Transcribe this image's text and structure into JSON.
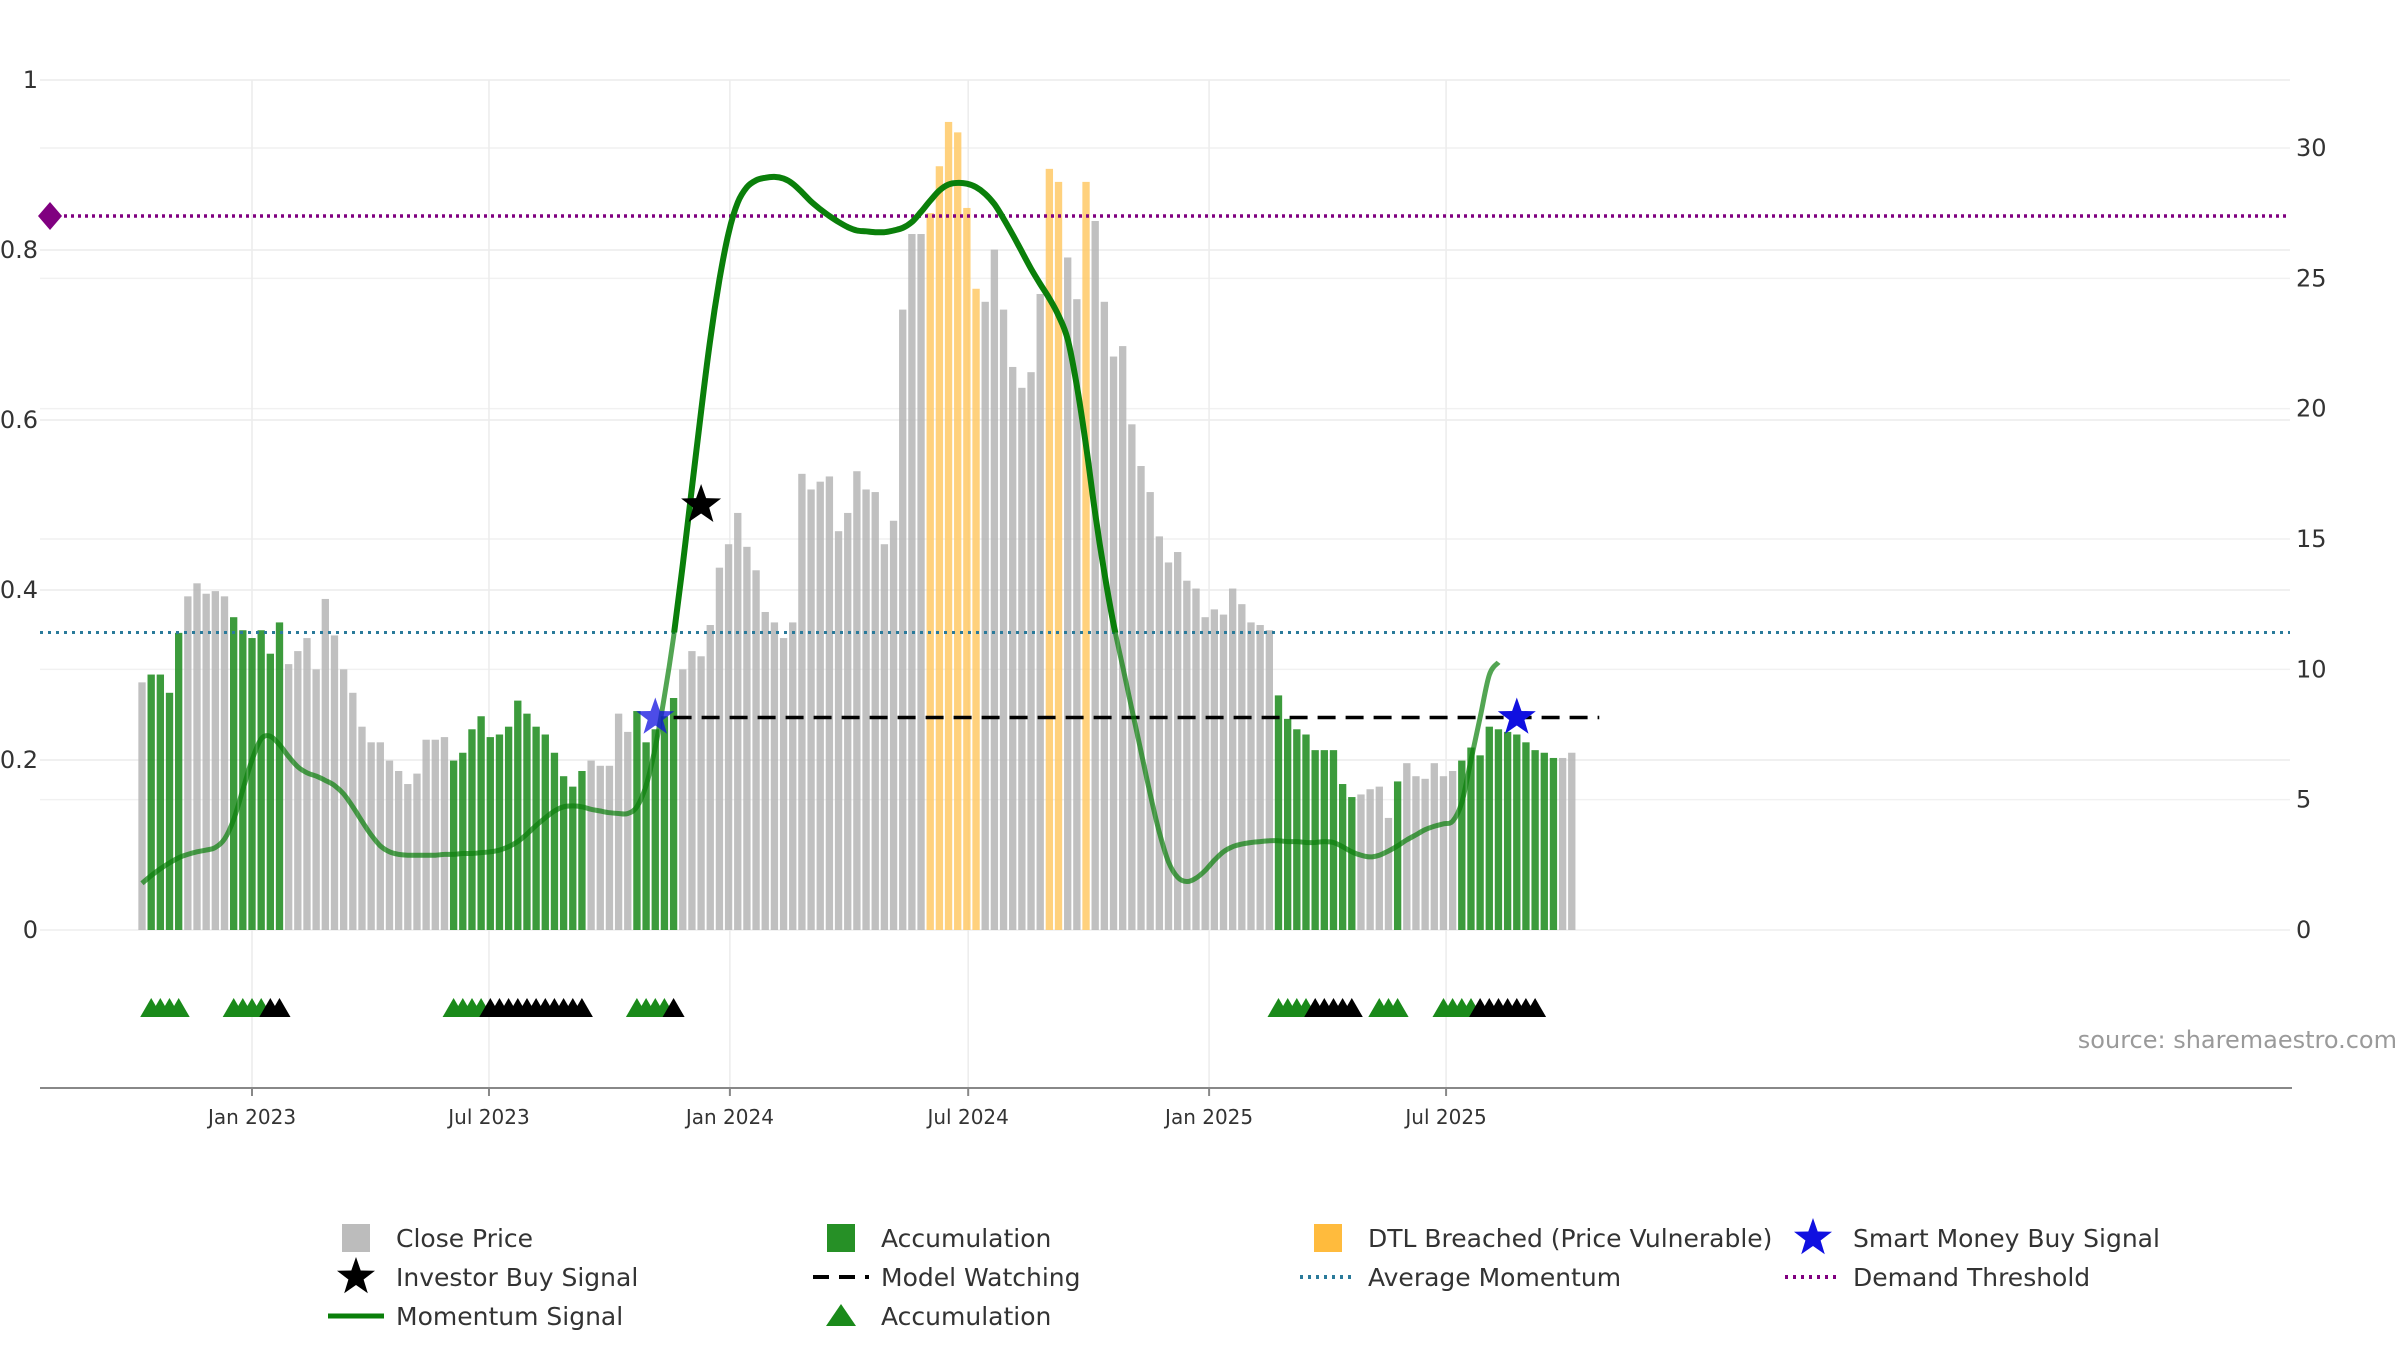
{
  "chart_data": {
    "type": "bar",
    "title": "",
    "source": "source: sharemaestro.com",
    "x_ticks": [
      "Jan 2023",
      "Jul 2023",
      "Jan 2024",
      "Jul 2024",
      "Jan 2025",
      "Jul 2025"
    ],
    "y_left_ticks": [
      "0",
      "0.2",
      "0.4",
      "0.6",
      "0.8",
      "1"
    ],
    "y_left_range": [
      0,
      1
    ],
    "y_right_ticks": [
      "0",
      "5",
      "10",
      "15",
      "20",
      "25",
      "30"
    ],
    "y_right_range": [
      0,
      30
    ],
    "grid": true,
    "legend_position": "bottom",
    "legend": [
      {
        "label": "Close Price",
        "symbol": "gray-square",
        "color": "#b5b5b5"
      },
      {
        "label": "Accumulation",
        "symbol": "green-square",
        "color": "#1a8a1a"
      },
      {
        "label": "DTL Breached (Price Vulnerable)",
        "symbol": "orange-square",
        "color": "#ffb733"
      },
      {
        "label": "Smart Money Buy Signal",
        "symbol": "blue-star",
        "color": "#1010e0"
      },
      {
        "label": "Investor Buy Signal",
        "symbol": "black-star",
        "color": "#000000"
      },
      {
        "label": "Model Watching",
        "symbol": "black-dash",
        "color": "#000000"
      },
      {
        "label": "Average Momentum",
        "symbol": "teal-dot",
        "color": "#2a7a9a"
      },
      {
        "label": "Demand Threshold",
        "symbol": "purple-dot",
        "color": "#800080"
      },
      {
        "label": "Momentum Signal",
        "symbol": "green-line",
        "color": "#0a7f0a"
      },
      {
        "label": "Accumulation",
        "symbol": "green-triangle",
        "color": "#1a8a1a"
      }
    ],
    "colors": {
      "gray": "#b5b5b5",
      "green": "#1a8a1a",
      "orange": "#ffc966",
      "momentum": "#0a7f0a",
      "average": "#2a7a9a",
      "threshold": "#800080",
      "watching": "#000000",
      "smart_money": "#1010e0",
      "investor": "#000000"
    },
    "series": [
      {
        "name": "Close Price",
        "type": "bar",
        "axis": "right",
        "start_date": "2022-10-09",
        "interval_days": 7,
        "values": [
          9.5,
          9.8,
          9.8,
          9.1,
          11.4,
          12.8,
          13.3,
          12.9,
          13.0,
          12.8,
          12.0,
          11.5,
          11.2,
          11.5,
          10.6,
          11.8,
          10.2,
          10.7,
          11.2,
          10.0,
          12.7,
          11.3,
          10.0,
          9.1,
          7.8,
          7.2,
          7.2,
          6.5,
          6.1,
          5.6,
          6.0,
          7.3,
          7.3,
          7.4,
          6.5,
          6.8,
          7.7,
          8.2,
          7.4,
          7.5,
          7.8,
          8.8,
          8.3,
          7.8,
          7.5,
          6.8,
          5.9,
          5.5,
          6.1,
          6.5,
          6.3,
          6.3,
          8.3,
          7.6,
          8.4,
          7.2,
          7.7,
          8.2,
          8.9,
          10.0,
          10.7,
          10.5,
          11.7,
          13.9,
          14.8,
          16.0,
          14.7,
          13.8,
          12.2,
          11.8,
          11.2,
          11.8,
          17.5,
          16.9,
          17.2,
          17.4,
          15.3,
          16.0,
          17.6,
          16.9,
          16.8,
          14.8,
          15.7,
          23.8,
          26.7,
          26.7,
          27.5,
          29.3,
          31.0,
          30.6,
          27.7,
          24.6,
          24.1,
          26.1,
          23.8,
          21.6,
          20.8,
          21.4,
          24.4,
          29.2,
          28.7,
          25.8,
          24.2,
          28.7,
          27.2,
          24.1,
          22.0,
          22.4,
          19.4,
          17.8,
          16.8,
          15.1,
          14.1,
          14.5,
          13.4,
          13.1,
          12.0,
          12.3,
          12.1,
          13.1,
          12.5,
          11.8,
          11.7,
          11.5,
          9.0,
          8.1,
          7.7,
          7.5,
          6.9,
          6.9,
          6.9,
          5.6,
          5.1,
          5.2,
          5.4,
          5.5,
          4.3,
          5.7,
          6.4,
          5.9,
          5.8,
          6.4,
          5.9,
          6.1,
          6.5,
          7.0,
          6.7,
          7.8,
          7.7,
          7.6,
          7.5,
          7.2,
          6.9,
          6.8,
          6.6,
          6.6,
          6.8
        ]
      },
      {
        "name": "Momentum Signal",
        "type": "line",
        "axis": "left",
        "start_date": "2022-10-09",
        "interval_days": 7,
        "values": [
          0.055,
          0.064,
          0.072,
          0.079,
          0.085,
          0.089,
          0.092,
          0.094,
          0.097,
          0.107,
          0.13,
          0.165,
          0.2,
          0.225,
          0.228,
          0.218,
          0.204,
          0.192,
          0.185,
          0.181,
          0.176,
          0.17,
          0.16,
          0.145,
          0.128,
          0.112,
          0.099,
          0.092,
          0.089,
          0.088,
          0.088,
          0.088,
          0.088,
          0.089,
          0.089,
          0.09,
          0.09,
          0.091,
          0.092,
          0.094,
          0.098,
          0.104,
          0.113,
          0.123,
          0.132,
          0.14,
          0.145,
          0.146,
          0.145,
          0.142,
          0.14,
          0.138,
          0.137,
          0.137,
          0.145,
          0.17,
          0.215,
          0.275,
          0.345,
          0.43,
          0.52,
          0.61,
          0.695,
          0.765,
          0.82,
          0.856,
          0.874,
          0.882,
          0.885,
          0.886,
          0.884,
          0.878,
          0.868,
          0.857,
          0.848,
          0.84,
          0.833,
          0.827,
          0.823,
          0.822,
          0.821,
          0.821,
          0.823,
          0.826,
          0.833,
          0.845,
          0.858,
          0.87,
          0.877,
          0.879,
          0.878,
          0.874,
          0.866,
          0.854,
          0.837,
          0.818,
          0.798,
          0.778,
          0.76,
          0.743,
          0.723,
          0.695,
          0.64,
          0.57,
          0.49,
          0.42,
          0.36,
          0.31,
          0.26,
          0.21,
          0.16,
          0.115,
          0.08,
          0.062,
          0.057,
          0.061,
          0.07,
          0.082,
          0.092,
          0.098,
          0.101,
          0.103,
          0.104,
          0.105,
          0.105,
          0.104,
          0.104,
          0.103,
          0.103,
          0.104,
          0.103,
          0.098,
          0.092,
          0.088,
          0.086,
          0.088,
          0.093,
          0.099,
          0.106,
          0.112,
          0.118,
          0.122,
          0.125,
          0.128,
          0.15,
          0.2,
          0.25,
          0.3,
          0.315
        ]
      },
      {
        "name": "Accumulation",
        "type": "bar-highlight",
        "index_ranges": [
          [
            1,
            4
          ],
          [
            10,
            15
          ],
          [
            34,
            48
          ],
          [
            54,
            58
          ],
          [
            124,
            125
          ],
          [
            126,
            132
          ],
          [
            137,
            137
          ],
          [
            144,
            154
          ]
        ]
      },
      {
        "name": "DTL Breached (Price Vulnerable)",
        "type": "bar-highlight",
        "index_ranges": [
          [
            86,
            91
          ],
          [
            99,
            100
          ],
          [
            103,
            103
          ]
        ]
      },
      {
        "name": "Average Momentum",
        "type": "hline",
        "axis": "left",
        "value": 0.35
      },
      {
        "name": "Demand Threshold",
        "type": "hline",
        "axis": "left",
        "value": 0.84
      },
      {
        "name": "Model Watching",
        "type": "segment",
        "axis": "left",
        "value": 0.25,
        "from_index": 58,
        "to_index": 159
      },
      {
        "name": "Smart Money Buy Signal",
        "type": "marker",
        "points": [
          {
            "date": "2023-11-05",
            "value": 0.25
          },
          {
            "date": "2025-08-24",
            "value": 0.25
          }
        ]
      },
      {
        "name": "Investor Buy Signal",
        "type": "marker",
        "points": [
          {
            "date": "2023-12-10",
            "value": 0.5
          }
        ]
      },
      {
        "name": "Accumulation",
        "type": "triangle-markers",
        "green_index_ranges": [
          [
            1,
            4
          ],
          [
            10,
            13
          ],
          [
            34,
            37
          ],
          [
            54,
            57
          ],
          [
            124,
            127
          ],
          [
            135,
            137
          ],
          [
            142,
            145
          ]
        ],
        "black_index_ranges": [
          [
            14,
            15
          ],
          [
            38,
            48
          ],
          [
            58,
            58
          ],
          [
            128,
            132
          ],
          [
            146,
            152
          ]
        ]
      }
    ]
  }
}
